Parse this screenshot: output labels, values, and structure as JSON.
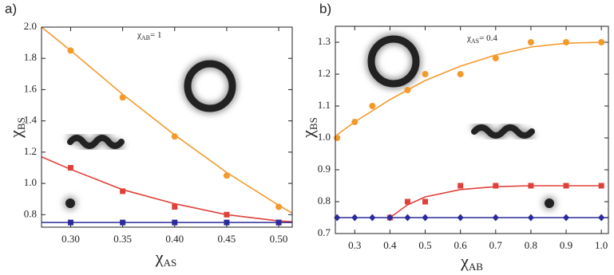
{
  "chart_data": [
    {
      "type": "scatter",
      "panel": "a)",
      "annotation": {
        "symbol": "χ",
        "sub": "AB",
        "text": "= 1"
      },
      "xlabel": {
        "symbol": "χ",
        "sub": "AS"
      },
      "ylabel": {
        "symbol": "χ",
        "sub": "BS"
      },
      "xlim": [
        0.272,
        0.513
      ],
      "ylim": [
        0.72,
        2.0
      ],
      "xticks": [
        {
          "value": 0.3,
          "label": "0.30"
        },
        {
          "value": 0.35,
          "label": "0.35"
        },
        {
          "value": 0.4,
          "label": "0.40"
        },
        {
          "value": 0.45,
          "label": "0.45"
        },
        {
          "value": 0.5,
          "label": "0.50"
        }
      ],
      "yticks": [
        0.8,
        {
          "value": 1,
          "label": "1.0"
        },
        1.2,
        1.4,
        1.6,
        1.8,
        {
          "value": 2,
          "label": "2.0"
        }
      ],
      "series": [
        {
          "color": "#f39a2b",
          "marker": "circle",
          "x": [
            0.3,
            0.35,
            0.4,
            0.45,
            0.5
          ],
          "values": [
            1.85,
            1.55,
            1.3,
            1.05,
            0.85
          ],
          "fit": {
            "x": [
              0.272,
              0.3,
              0.35,
              0.4,
              0.45,
              0.5,
              0.513
            ],
            "y": [
              2.0,
              1.85,
              1.57,
              1.31,
              1.07,
              0.86,
              0.81
            ]
          }
        },
        {
          "color": "#e0403a",
          "marker": "square",
          "x": [
            0.3,
            0.35,
            0.4,
            0.45,
            0.5
          ],
          "values": [
            1.1,
            0.95,
            0.85,
            0.8,
            0.75
          ],
          "fit": {
            "x": [
              0.272,
              0.3,
              0.35,
              0.4,
              0.45,
              0.5,
              0.513
            ],
            "y": [
              1.17,
              1.09,
              0.96,
              0.87,
              0.8,
              0.76,
              0.755
            ]
          }
        },
        {
          "color": "#2b2b9a",
          "marker": "square",
          "x": [
            0.3,
            0.35,
            0.4,
            0.45,
            0.5
          ],
          "values": [
            0.75,
            0.75,
            0.75,
            0.75,
            0.75
          ],
          "fit": {
            "x": [
              0.272,
              0.513
            ],
            "y": [
              0.75,
              0.75
            ]
          }
        }
      ]
    },
    {
      "type": "scatter",
      "panel": "b)",
      "annotation": {
        "symbol": "χ",
        "sub": "AS",
        "text": "= 0.4"
      },
      "xlabel": {
        "symbol": "χ",
        "sub": "AB"
      },
      "ylabel": {
        "symbol": "χ",
        "sub": "BS"
      },
      "xlim": [
        0.245,
        1.02
      ],
      "ylim": [
        0.7,
        1.35
      ],
      "xticks": [
        0.3,
        0.4,
        0.5,
        0.6,
        0.7,
        0.8,
        0.9,
        {
          "value": 1,
          "label": "1.0"
        }
      ],
      "yticks": [
        0.7,
        0.8,
        0.9,
        {
          "value": 1,
          "label": "1.0"
        },
        1.1,
        1.2,
        1.3
      ],
      "series": [
        {
          "color": "#f39a2b",
          "marker": "circle",
          "x": [
            0.25,
            0.3,
            0.35,
            0.45,
            0.5,
            0.6,
            0.7,
            0.8,
            0.9,
            1.0
          ],
          "values": [
            1.0,
            1.05,
            1.1,
            1.15,
            1.2,
            1.2,
            1.25,
            1.3,
            1.3,
            1.3
          ],
          "fit": {
            "x": [
              0.25,
              0.3,
              0.4,
              0.5,
              0.6,
              0.7,
              0.8,
              0.9,
              1.0
            ],
            "y": [
              1.01,
              1.05,
              1.12,
              1.18,
              1.225,
              1.26,
              1.285,
              1.297,
              1.3
            ]
          }
        },
        {
          "color": "#e0403a",
          "marker": "square",
          "x": [
            0.4,
            0.45,
            0.5,
            0.6,
            0.7,
            0.8,
            0.9,
            1.0
          ],
          "values": [
            0.75,
            0.8,
            0.8,
            0.85,
            0.85,
            0.85,
            0.85,
            0.85
          ],
          "fit": {
            "x": [
              0.4,
              0.45,
              0.5,
              0.6,
              0.7,
              0.8,
              1.0
            ],
            "y": [
              0.75,
              0.79,
              0.815,
              0.838,
              0.847,
              0.85,
              0.85
            ]
          }
        },
        {
          "color": "#2b2b9a",
          "marker": "diamond",
          "x": [
            0.25,
            0.3,
            0.35,
            0.4,
            0.45,
            0.5,
            0.6,
            0.7,
            0.8,
            0.9,
            1.0
          ],
          "values": [
            0.75,
            0.75,
            0.75,
            0.75,
            0.75,
            0.75,
            0.75,
            0.75,
            0.75,
            0.75,
            0.75
          ],
          "fit": {
            "x": [
              0.245,
              1.02
            ],
            "y": [
              0.75,
              0.75
            ]
          }
        }
      ]
    }
  ]
}
